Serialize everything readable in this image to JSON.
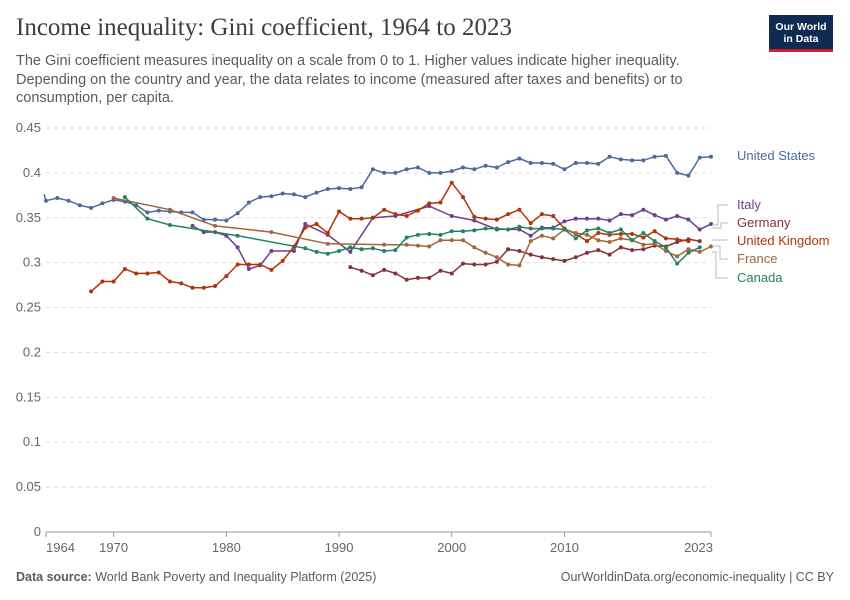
{
  "header": {
    "title": "Income inequality: Gini coefficient, 1964 to 2023",
    "subtitle": "The Gini coefficient measures inequality on a scale from 0 to 1. Higher values indicate higher inequality. Depending on the country and year, the data relates to income (measured after taxes and benefits) or to consumption, per capita.",
    "logo_line1": "Our World",
    "logo_line2": "in Data"
  },
  "footer": {
    "source_label": "Data source:",
    "source_text": "World Bank Poverty and Inequality Platform (2025)",
    "url_text": "OurWorldinData.org/economic-inequality | CC BY"
  },
  "chart_data": {
    "type": "line",
    "title": "Income inequality: Gini coefficient, 1964 to 2023",
    "xlim": [
      1964,
      2023
    ],
    "ylim": [
      0,
      0.45
    ],
    "x_ticks": [
      1964,
      1970,
      1980,
      1990,
      2000,
      2010,
      2023
    ],
    "y_ticks": [
      0,
      0.05,
      0.1,
      0.15,
      0.2,
      0.25,
      0.3,
      0.35,
      0.4,
      0.45
    ],
    "y_tick_labels": [
      "0",
      "0.05",
      "0.1",
      "0.15",
      "0.2",
      "0.25",
      "0.3",
      "0.35",
      "0.4",
      "0.45"
    ],
    "grid": "horizontal dashed",
    "legend": "right, line-end labels",
    "series": [
      {
        "name": "United States",
        "color": "#4c6a9c",
        "x": [
          1963,
          1964,
          1965,
          1966,
          1967,
          1968,
          1969,
          1970,
          1971,
          1972,
          1973,
          1974,
          1975,
          1976,
          1977,
          1978,
          1979,
          1980,
          1981,
          1982,
          1983,
          1984,
          1985,
          1986,
          1987,
          1988,
          1989,
          1990,
          1991,
          1992,
          1993,
          1994,
          1995,
          1996,
          1997,
          1998,
          1999,
          2000,
          2001,
          2002,
          2003,
          2004,
          2005,
          2006,
          2007,
          2008,
          2009,
          2010,
          2011,
          2012,
          2013,
          2014,
          2015,
          2016,
          2017,
          2018,
          2019,
          2020,
          2021,
          2022,
          2023
        ],
        "y": [
          0.376,
          0.369,
          0.372,
          0.369,
          0.364,
          0.361,
          0.366,
          0.37,
          0.368,
          0.364,
          0.356,
          0.358,
          0.357,
          0.356,
          0.356,
          0.348,
          0.348,
          0.347,
          0.355,
          0.367,
          0.373,
          0.374,
          0.377,
          0.376,
          0.373,
          0.378,
          0.382,
          0.383,
          0.382,
          0.384,
          0.404,
          0.4,
          0.4,
          0.404,
          0.406,
          0.4,
          0.4,
          0.402,
          0.406,
          0.404,
          0.408,
          0.406,
          0.412,
          0.416,
          0.411,
          0.411,
          0.41,
          0.404,
          0.411,
          0.411,
          0.41,
          0.418,
          0.415,
          0.414,
          0.414,
          0.418,
          0.419,
          0.4,
          0.397,
          0.417,
          0.418
        ]
      },
      {
        "name": "Italy",
        "color": "#6d3e91",
        "x": [
          1977,
          1978,
          1979,
          1980,
          1981,
          1982,
          1983,
          1984,
          1986,
          1987,
          1989,
          1991,
          1993,
          1995,
          1998,
          2000,
          2002,
          2004,
          2006,
          2007,
          2008,
          2009,
          2010,
          2011,
          2012,
          2013,
          2014,
          2015,
          2016,
          2017,
          2018,
          2019,
          2020,
          2021,
          2022,
          2023
        ],
        "y": [
          0.341,
          0.334,
          0.334,
          0.33,
          0.317,
          0.293,
          0.297,
          0.313,
          0.313,
          0.343,
          0.331,
          0.312,
          0.35,
          0.352,
          0.363,
          0.352,
          0.347,
          0.337,
          0.337,
          0.33,
          0.339,
          0.339,
          0.346,
          0.349,
          0.349,
          0.349,
          0.347,
          0.354,
          0.353,
          0.359,
          0.353,
          0.348,
          0.352,
          0.348,
          0.337,
          0.343
        ]
      },
      {
        "name": "Germany",
        "color": "#883039",
        "x": [
          1991,
          1992,
          1993,
          1994,
          1995,
          1996,
          1997,
          1998,
          1999,
          2000,
          2001,
          2002,
          2003,
          2004,
          2005,
          2006,
          2007,
          2008,
          2009,
          2010,
          2011,
          2012,
          2013,
          2014,
          2015,
          2016,
          2017,
          2018,
          2019,
          2020,
          2021,
          2022
        ],
        "y": [
          0.295,
          0.291,
          0.286,
          0.292,
          0.288,
          0.281,
          0.283,
          0.283,
          0.291,
          0.288,
          0.299,
          0.298,
          0.298,
          0.301,
          0.315,
          0.313,
          0.309,
          0.306,
          0.304,
          0.302,
          0.306,
          0.311,
          0.314,
          0.309,
          0.317,
          0.314,
          0.315,
          0.319,
          0.318,
          0.323,
          0.326,
          0.324
        ]
      },
      {
        "name": "United Kingdom",
        "color": "#b13507",
        "x": [
          1968,
          1969,
          1970,
          1971,
          1972,
          1973,
          1974,
          1975,
          1976,
          1977,
          1978,
          1979,
          1980,
          1981,
          1982,
          1983,
          1984,
          1985,
          1986,
          1987,
          1988,
          1989,
          1990,
          1991,
          1992,
          1993,
          1994,
          1995,
          1996,
          1997,
          1998,
          1999,
          2000,
          2001,
          2002,
          2003,
          2004,
          2005,
          2006,
          2007,
          2008,
          2009,
          2010,
          2011,
          2012,
          2013,
          2014,
          2015,
          2016,
          2017,
          2018,
          2019,
          2020,
          2021
        ],
        "y": [
          0.268,
          0.279,
          0.279,
          0.293,
          0.288,
          0.288,
          0.289,
          0.279,
          0.277,
          0.272,
          0.272,
          0.274,
          0.285,
          0.298,
          0.298,
          0.298,
          0.292,
          0.302,
          0.318,
          0.339,
          0.343,
          0.333,
          0.357,
          0.349,
          0.349,
          0.35,
          0.359,
          0.354,
          0.352,
          0.358,
          0.366,
          0.367,
          0.389,
          0.373,
          0.351,
          0.349,
          0.348,
          0.354,
          0.359,
          0.344,
          0.354,
          0.352,
          0.338,
          0.332,
          0.324,
          0.333,
          0.331,
          0.332,
          0.332,
          0.328,
          0.335,
          0.327,
          0.326,
          0.324
        ]
      },
      {
        "name": "France",
        "color": "#a2673c",
        "x": [
          1970,
          1975,
          1979,
          1984,
          1989,
          1994,
          1996,
          1997,
          1998,
          1999,
          2000,
          2001,
          2002,
          2003,
          2004,
          2005,
          2006,
          2007,
          2008,
          2009,
          2010,
          2011,
          2012,
          2013,
          2014,
          2015,
          2016,
          2017,
          2018,
          2019,
          2020,
          2021,
          2022,
          2023
        ],
        "y": [
          0.372,
          0.359,
          0.341,
          0.334,
          0.321,
          0.32,
          0.32,
          0.319,
          0.318,
          0.325,
          0.325,
          0.325,
          0.317,
          0.311,
          0.306,
          0.298,
          0.297,
          0.324,
          0.33,
          0.327,
          0.337,
          0.333,
          0.331,
          0.325,
          0.323,
          0.327,
          0.325,
          0.32,
          0.321,
          0.313,
          0.307,
          0.315,
          0.312,
          0.318
        ]
      },
      {
        "name": "Canada",
        "color": "#268160",
        "x": [
          1971,
          1973,
          1975,
          1981,
          1987,
          1988,
          1989,
          1990,
          1991,
          1992,
          1993,
          1994,
          1995,
          1996,
          1997,
          1998,
          1999,
          2000,
          2001,
          2002,
          2003,
          2004,
          2005,
          2006,
          2007,
          2008,
          2009,
          2010,
          2011,
          2012,
          2013,
          2014,
          2015,
          2016,
          2017,
          2018,
          2019,
          2020,
          2021,
          2022
        ],
        "y": [
          0.373,
          0.349,
          0.342,
          0.33,
          0.316,
          0.312,
          0.31,
          0.313,
          0.317,
          0.315,
          0.316,
          0.313,
          0.314,
          0.328,
          0.331,
          0.332,
          0.331,
          0.335,
          0.335,
          0.336,
          0.338,
          0.338,
          0.337,
          0.34,
          0.338,
          0.338,
          0.338,
          0.337,
          0.327,
          0.336,
          0.338,
          0.333,
          0.337,
          0.325,
          0.333,
          0.324,
          0.317,
          0.299,
          0.311,
          0.317
        ]
      }
    ]
  }
}
